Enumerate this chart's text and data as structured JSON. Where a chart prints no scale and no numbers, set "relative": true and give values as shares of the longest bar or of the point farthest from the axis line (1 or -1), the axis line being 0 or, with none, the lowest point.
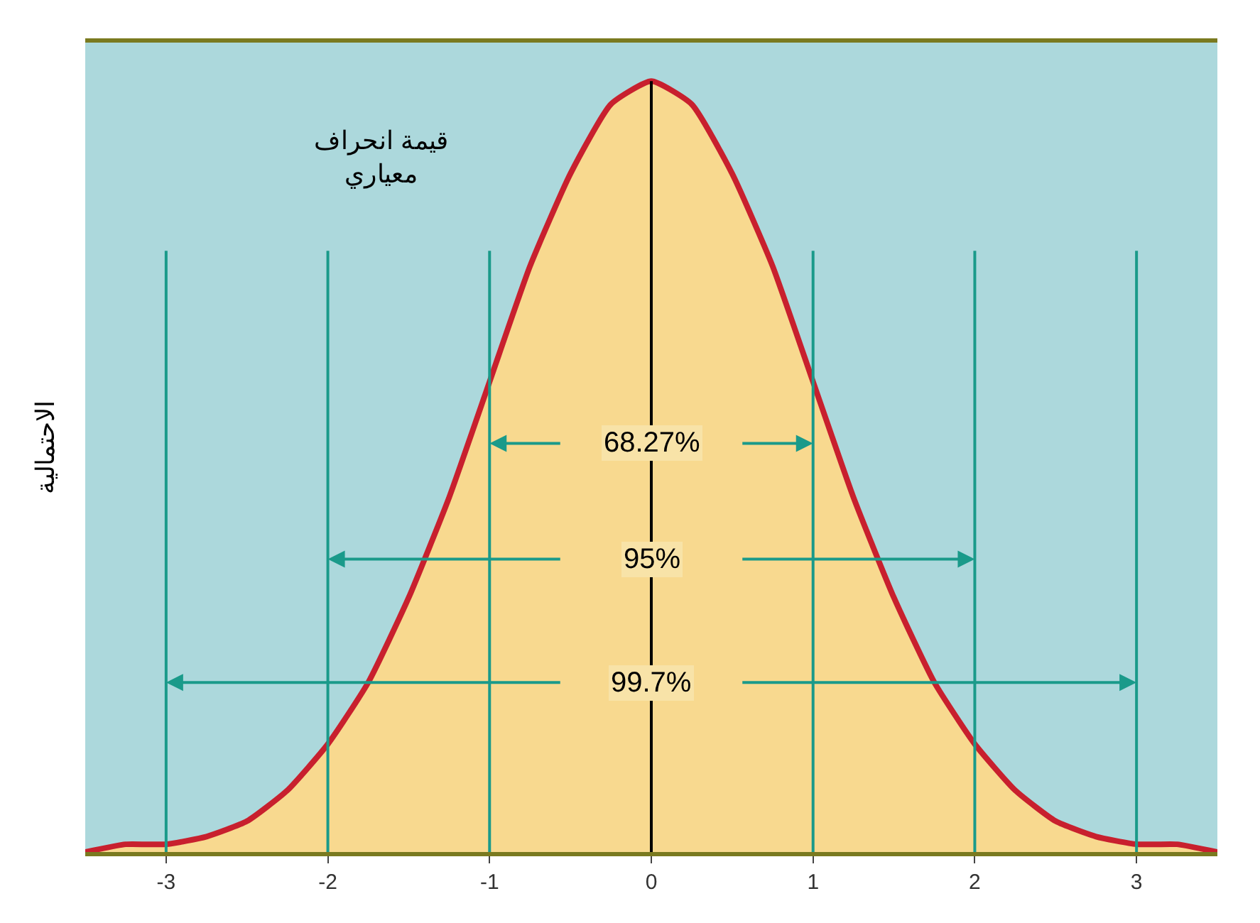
{
  "chart_data": {
    "type": "area",
    "relative": true,
    "ylabel": "الاحتمالية",
    "x": [
      -3.5,
      -3.25,
      -3,
      -2.75,
      -2.5,
      -2.25,
      -2,
      -1.75,
      -1.5,
      -1.25,
      -1,
      -0.75,
      -0.5,
      -0.25,
      0,
      0.25,
      0.5,
      0.75,
      1,
      1.25,
      1.5,
      1.75,
      2,
      2.25,
      2.5,
      2.75,
      3,
      3.25,
      3.5
    ],
    "series": [
      {
        "color": "#c8202e",
        "values": [
          0.0,
          0.01,
          0.01,
          0.02,
          0.04,
          0.08,
          0.14,
          0.22,
          0.33,
          0.46,
          0.61,
          0.76,
          0.88,
          0.97,
          1.0,
          0.97,
          0.88,
          0.76,
          0.61,
          0.46,
          0.33,
          0.22,
          0.14,
          0.08,
          0.04,
          0.02,
          0.01,
          0.01,
          0.0
        ]
      }
    ],
    "xlim": [
      -3.5,
      3.5
    ],
    "xticks": [
      -3,
      -2,
      -1,
      0,
      1,
      2,
      3
    ],
    "tick_labels": "x",
    "grid": false,
    "legend": false,
    "ref_lines": [
      {
        "axis": "x",
        "value": -3,
        "color": "#1a9a8a"
      },
      {
        "axis": "x",
        "value": -2,
        "color": "#1a9a8a"
      },
      {
        "axis": "x",
        "value": -1,
        "color": "#1a9a8a"
      },
      {
        "axis": "x",
        "value": 0,
        "color": "#000000"
      },
      {
        "axis": "x",
        "value": 1,
        "color": "#1a9a8a"
      },
      {
        "axis": "x",
        "value": 2,
        "color": "#1a9a8a"
      },
      {
        "axis": "x",
        "value": 3,
        "color": "#1a9a8a"
      }
    ],
    "annotations": [
      "68.27%",
      "95%",
      "99.7%",
      "قيمة انحراف\nمعياري"
    ]
  }
}
